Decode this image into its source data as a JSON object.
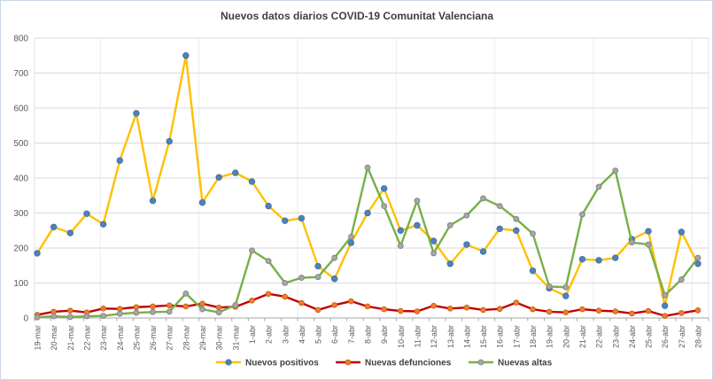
{
  "window": {
    "background": "#ffffff",
    "border_color": "#c9d6e2"
  },
  "chart_data": {
    "type": "line",
    "title": "Nuevos datos diarios COVID-19 Comunitat Valenciana",
    "title_color": "#3f3f3f",
    "axis_label_color": "#595959",
    "grid_color": "#d9d9d9",
    "grid": true,
    "legend_position": "bottom",
    "ylim": [
      0,
      800
    ],
    "ytick_step": 100,
    "yticks": [
      0,
      100,
      200,
      300,
      400,
      500,
      600,
      700,
      800
    ],
    "categories": [
      "19-mar",
      "20-mar",
      "21-mar",
      "22-mar",
      "23-mar",
      "24-mar",
      "25-mar",
      "26-mar",
      "27-mar",
      "28-mar",
      "29-mar",
      "30-mar",
      "31-mar",
      "1-abr",
      "2-abr",
      "3-abr",
      "4-abr",
      "5-abr",
      "6-abr",
      "7-abr",
      "8-abr",
      "9-abr",
      "10-abr",
      "11-abr",
      "12-abr",
      "13-abr",
      "14-abr",
      "15-abr",
      "16-abr",
      "17-abr",
      "18-abr",
      "19-abr",
      "20-abr",
      "21-abr",
      "22-abr",
      "23-abr",
      "24-abr",
      "25-abr",
      "26-abr",
      "27-abr",
      "28-abr"
    ],
    "series": [
      {
        "id": "nuevos-positivos",
        "name": "Nuevos positivos",
        "line_color": "#FFC000",
        "marker_color": "#4F81BD",
        "marker_stroke": "#3c6da3",
        "values": [
          185,
          260,
          243,
          298,
          268,
          450,
          585,
          335,
          505,
          750,
          330,
          402,
          415,
          390,
          320,
          278,
          285,
          148,
          112,
          215,
          300,
          370,
          250,
          265,
          220,
          155,
          210,
          190,
          255,
          250,
          135,
          85,
          63,
          168,
          165,
          172,
          225,
          248,
          35,
          246,
          155
        ]
      },
      {
        "id": "nuevas-defunciones",
        "name": "Nuevas defunciones",
        "line_color": "#C00000",
        "marker_color": "#ED7D31",
        "marker_stroke": "#c55a11",
        "values": [
          9,
          18,
          21,
          16,
          27,
          26,
          31,
          33,
          36,
          33,
          41,
          30,
          32,
          50,
          69,
          61,
          43,
          23,
          37,
          48,
          33,
          25,
          20,
          19,
          35,
          27,
          30,
          23,
          26,
          44,
          25,
          18,
          16,
          25,
          21,
          19,
          13,
          20,
          6,
          14,
          22
        ]
      },
      {
        "id": "nuevas-altas",
        "name": "Nuevas altas",
        "line_color": "#76B049",
        "marker_color": "#A6A6A6",
        "marker_stroke": "#7f7f7f",
        "values": [
          2,
          5,
          3,
          5,
          6,
          12,
          15,
          17,
          18,
          70,
          25,
          16,
          37,
          193,
          163,
          100,
          115,
          117,
          172,
          232,
          430,
          320,
          206,
          335,
          185,
          265,
          293,
          342,
          320,
          283,
          241,
          90,
          88,
          296,
          375,
          421,
          216,
          210,
          65,
          110,
          172
        ]
      }
    ]
  }
}
